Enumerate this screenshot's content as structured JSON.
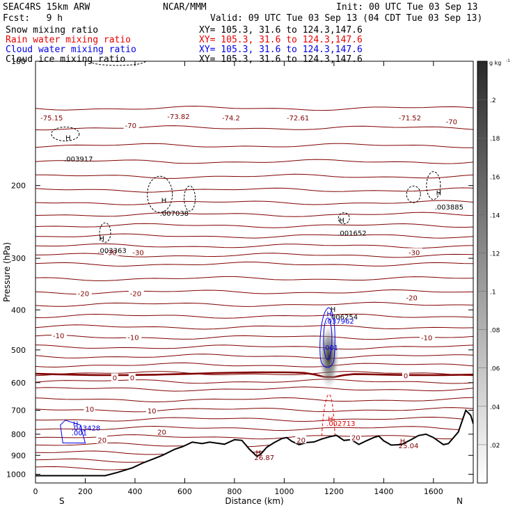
{
  "header": {
    "model": "SEAC4RS 15km ARW",
    "org": "NCAR/MMM",
    "init": "Init: 00 UTC Tue 03 Sep 13",
    "fcst": "Fcst:   9 h",
    "valid": "Valid: 09 UTC Tue 03 Sep 13 (04 CDT Tue 03 Sep 13)"
  },
  "fields": [
    {
      "name": "Snow mixing ratio",
      "xy": "XY= 105.3, 31.6 to 124.3,147.6",
      "color": "#000000"
    },
    {
      "name": "Rain water mixing ratio",
      "xy": "XY= 105.3, 31.6 to 124.3,147.6",
      "color": "#e60000"
    },
    {
      "name": "Cloud water mixing ratio",
      "xy": "XY= 105.3, 31.6 to 124.3,147.6",
      "color": "#0000e6"
    },
    {
      "name": "Cloud ice mixing ratio",
      "xy": "XY= 105.3, 31.6 to 124.3,147.6",
      "color": "#000000"
    }
  ],
  "chart_data": {
    "type": "contour",
    "xlabel": "Distance (km)",
    "ylabel": "Pressure (hPa)",
    "xlim": [
      0,
      1760
    ],
    "ylim": [
      1050,
      100
    ],
    "y_scale": "log",
    "x_ticks": [
      0,
      200,
      400,
      600,
      800,
      1000,
      1200,
      1400,
      1600
    ],
    "y_ticks": [
      1000,
      900,
      800,
      700,
      600,
      500,
      400,
      300,
      200,
      100
    ],
    "direction_left": "S",
    "direction_right": "N",
    "colorbar": {
      "unit": "g kg",
      "unit_exp": "-1",
      "ticks": [
        ".02",
        ".04",
        ".06",
        ".08",
        ".1",
        ".12",
        ".14",
        ".16",
        ".18",
        ".2"
      ],
      "values": [
        0.02,
        0.04,
        0.06,
        0.08,
        0.1,
        0.12,
        0.14,
        0.16,
        0.18,
        0.2
      ]
    },
    "temperature_labels": [
      {
        "text": "-75.15",
        "x": 20,
        "p": 137
      },
      {
        "text": "-73.82",
        "x": 530,
        "p": 136
      },
      {
        "text": "-74.2",
        "x": 750,
        "p": 137
      },
      {
        "text": "-72.61",
        "x": 1010,
        "p": 137
      },
      {
        "text": "-71.52",
        "x": 1460,
        "p": 137
      },
      {
        "text": "-70",
        "x": 360,
        "p": 143
      },
      {
        "text": "-70",
        "x": 1650,
        "p": 140
      },
      {
        "text": "-30",
        "x": 280,
        "p": 290
      },
      {
        "text": "-30",
        "x": 390,
        "p": 290
      },
      {
        "text": "-30",
        "x": 1500,
        "p": 290
      },
      {
        "text": "-20",
        "x": 170,
        "p": 365
      },
      {
        "text": "-20",
        "x": 380,
        "p": 365
      },
      {
        "text": "-20",
        "x": 1490,
        "p": 373
      },
      {
        "text": "-10",
        "x": 70,
        "p": 461
      },
      {
        "text": "-10",
        "x": 370,
        "p": 466
      },
      {
        "text": "-10",
        "x": 1550,
        "p": 467
      },
      {
        "text": "0",
        "x": 310,
        "p": 583
      },
      {
        "text": "0",
        "x": 380,
        "p": 583
      },
      {
        "text": "0",
        "x": 1480,
        "p": 577
      },
      {
        "text": "10",
        "x": 200,
        "p": 695
      },
      {
        "text": "10",
        "x": 450,
        "p": 702
      },
      {
        "text": "20",
        "x": 490,
        "p": 789
      },
      {
        "text": "20",
        "x": 250,
        "p": 826
      },
      {
        "text": "20",
        "x": 1050,
        "p": 825
      },
      {
        "text": "20",
        "x": 1270,
        "p": 815
      }
    ],
    "extrema": [
      {
        "text": ".003917",
        "x": 115,
        "p": 172,
        "h_p": 153,
        "color": "#000000"
      },
      {
        "text": ".007038",
        "x": 500,
        "p": 233,
        "h_p": 217,
        "color": "#000000"
      },
      {
        "text": ".003363",
        "x": 250,
        "p": 287,
        "h_p": 268,
        "color": "#000000"
      },
      {
        "text": ".001652",
        "x": 1215,
        "p": 260,
        "h_p": 242,
        "color": "#000000"
      },
      {
        "text": ".003885",
        "x": 1605,
        "p": 225,
        "h_p": 208,
        "color": "#000000"
      },
      {
        "text": ".006254",
        "x": 1180,
        "p": 415,
        "h_p": 398,
        "color": "#000000"
      },
      {
        "text": ".037962",
        "x": 1165,
        "p": 425,
        "h_p": 408,
        "color": "#0000e6"
      },
      {
        "text": ".001",
        "x": 1155,
        "p": 493,
        "h_p": null,
        "color": "#0000e6"
      },
      {
        "text": ".002713",
        "x": 1170,
        "p": 752,
        "h_p": 733,
        "color": "#e60000"
      },
      {
        "text": ".043428",
        "x": 145,
        "p": 771,
        "h_p": 753,
        "color": "#0000e6"
      },
      {
        "text": ".001",
        "x": 145,
        "p": 793,
        "h_p": null,
        "color": "#0000e6"
      },
      {
        "text": "26.87",
        "x": 880,
        "p": 910,
        "h_p": 886,
        "color": "#800000"
      },
      {
        "text": "25.04",
        "x": 1460,
        "p": 852,
        "h_p": 830,
        "color": "#800000"
      }
    ],
    "isotherm_levels": [
      -70,
      -60,
      -50,
      -40,
      -30,
      -20,
      -10,
      0,
      10,
      20
    ],
    "terrain_top_hPa": [
      [
        0,
        1008
      ],
      [
        280,
        1008
      ],
      [
        330,
        990
      ],
      [
        390,
        965
      ],
      [
        430,
        940
      ],
      [
        470,
        920
      ],
      [
        510,
        900
      ],
      [
        560,
        870
      ],
      [
        590,
        858
      ],
      [
        630,
        836
      ],
      [
        670,
        843
      ],
      [
        700,
        836
      ],
      [
        760,
        846
      ],
      [
        800,
        825
      ],
      [
        830,
        828
      ],
      [
        860,
        870
      ],
      [
        890,
        905
      ],
      [
        905,
        895
      ],
      [
        930,
        860
      ],
      [
        960,
        838
      ],
      [
        990,
        820
      ],
      [
        1010,
        815
      ],
      [
        1030,
        832
      ],
      [
        1060,
        848
      ],
      [
        1090,
        838
      ],
      [
        1120,
        835
      ],
      [
        1150,
        822
      ],
      [
        1180,
        812
      ],
      [
        1210,
        805
      ],
      [
        1240,
        828
      ],
      [
        1270,
        825
      ],
      [
        1300,
        847
      ],
      [
        1330,
        830
      ],
      [
        1360,
        815
      ],
      [
        1380,
        808
      ],
      [
        1400,
        830
      ],
      [
        1430,
        850
      ],
      [
        1470,
        848
      ],
      [
        1510,
        825
      ],
      [
        1540,
        806
      ],
      [
        1570,
        800
      ],
      [
        1600,
        815
      ],
      [
        1640,
        848
      ],
      [
        1660,
        843
      ],
      [
        1700,
        790
      ],
      [
        1730,
        700
      ],
      [
        1750,
        720
      ],
      [
        1760,
        755
      ]
    ]
  }
}
